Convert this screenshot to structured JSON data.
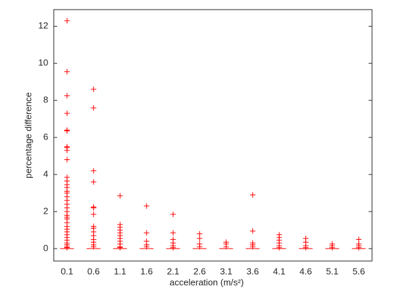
{
  "chart_data": {
    "type": "box",
    "xlabel": "acceleration (m/s²)",
    "ylabel": "percentage difference",
    "categories": [
      "0.1",
      "0.6",
      "1.1",
      "1.6",
      "2.1",
      "2.6",
      "3.1",
      "3.6",
      "4.1",
      "4.6",
      "5.1",
      "5.6"
    ],
    "medians": [
      0,
      0,
      0,
      0,
      0,
      0,
      0,
      0,
      0,
      0,
      0,
      0
    ],
    "outliers": [
      [
        12.3,
        9.55,
        8.25,
        7.3,
        6.4,
        6.35,
        5.5,
        5.45,
        5.3,
        4.8,
        3.85,
        3.65,
        3.45,
        3.3,
        3.1,
        3.0,
        2.8,
        2.6,
        2.4,
        2.2,
        2.0,
        1.8,
        1.7,
        1.6,
        1.4,
        1.2,
        1.05,
        0.9,
        0.75,
        0.6,
        0.45,
        0.3,
        0.2,
        0.1,
        0.05
      ],
      [
        8.6,
        7.6,
        4.2,
        3.6,
        2.25,
        2.2,
        1.85,
        1.2,
        1.1,
        0.9,
        0.7,
        0.5,
        0.35,
        0.2,
        0.1
      ],
      [
        2.85,
        1.3,
        1.15,
        1.0,
        0.85,
        0.7,
        0.55,
        0.4,
        0.25,
        0.1,
        0.05
      ],
      [
        2.3,
        0.85,
        0.4,
        0.2,
        0.1
      ],
      [
        1.85,
        0.85,
        0.5,
        0.3,
        0.15,
        0.05
      ],
      [
        0.8,
        0.55,
        0.25,
        0.1
      ],
      [
        0.35,
        0.25,
        0.1
      ],
      [
        2.9,
        0.95,
        0.3,
        0.2,
        0.1
      ],
      [
        0.75,
        0.6,
        0.45,
        0.3,
        0.15,
        0.05
      ],
      [
        0.55,
        0.35,
        0.15,
        0.05
      ],
      [
        0.25,
        0.15,
        0.05
      ],
      [
        0.5,
        0.25,
        0.15,
        0.05
      ]
    ],
    "color": "#ff0000",
    "ylim": [
      -0.67,
      12.9
    ],
    "yticks": [
      0,
      2,
      4,
      6,
      8,
      10,
      12
    ]
  }
}
